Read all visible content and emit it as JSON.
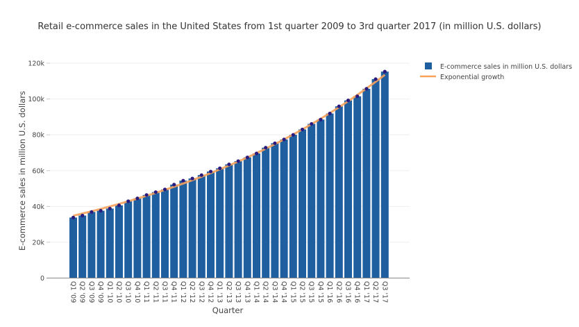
{
  "chart_data": {
    "type": "bar",
    "title": "Retail e-commerce sales in the United States from 1st quarter 2009 to 3rd quarter 2017 (in million U.S. dollars)",
    "xlabel": "Quarter",
    "ylabel": "E-commerce sales in million U.S. dollars",
    "ylim": [
      0,
      120000
    ],
    "yticks": [
      0,
      20000,
      40000,
      60000,
      80000,
      100000,
      120000
    ],
    "ytick_labels": [
      "0",
      "20k",
      "40k",
      "60k",
      "80k",
      "100k",
      "120k"
    ],
    "grid": true,
    "legend_position": "top-right",
    "categories": [
      "Q1 '09",
      "Q2 '09",
      "Q3 '09",
      "Q4 '09",
      "Q1 '10",
      "Q2 '10",
      "Q3 '10",
      "Q4 '10",
      "Q1 '11",
      "Q2 '11",
      "Q3 '11",
      "Q4 '11",
      "Q1 '12",
      "Q2 '12",
      "Q3 '12",
      "Q4 '12",
      "Q1 '13",
      "Q2 '13",
      "Q3 '13",
      "Q4 '13",
      "Q1 '14",
      "Q2 '14",
      "Q3 '14",
      "Q4 '14",
      "Q1 '15",
      "Q2 '15",
      "Q3 '15",
      "Q4 '15",
      "Q1 '16",
      "Q2 '16",
      "Q3 '16",
      "Q4 '16",
      "Q1 '17",
      "Q2 '17",
      "Q3 '17"
    ],
    "series": [
      {
        "name": "E-commerce sales in million U.S. dollars",
        "type": "bar",
        "color": "#1f5fa0",
        "marker_color": "#2b1b7e",
        "values": [
          33800,
          34900,
          36900,
          37600,
          38800,
          40600,
          42900,
          44500,
          46400,
          48000,
          49500,
          52200,
          54400,
          55600,
          57500,
          59500,
          61300,
          63500,
          65300,
          67400,
          69600,
          72800,
          75300,
          77400,
          80000,
          83000,
          86100,
          88500,
          91900,
          95900,
          99200,
          101500,
          105700,
          111100,
          115300
        ]
      },
      {
        "name": "Exponential growth",
        "type": "line",
        "color": "#f7a35c",
        "start": 34800,
        "end": 113500
      }
    ]
  }
}
